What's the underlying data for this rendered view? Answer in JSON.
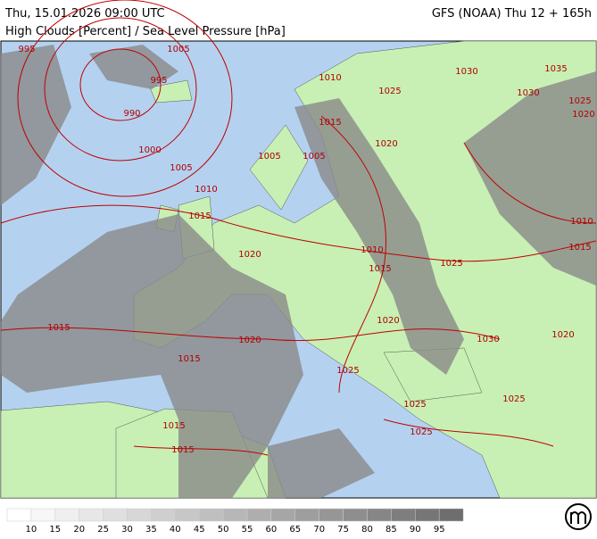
{
  "header": {
    "left": "Thu, 15.01.2026 09:00 UTC",
    "right": "GFS (NOAA) Thu 12 + 165h",
    "subtitle": "High Clouds [Percent] / Sea Level Pressure [hPa]"
  },
  "isobar_labels": [
    995,
    1005,
    995,
    990,
    1000,
    1005,
    1010,
    1030,
    1035,
    1025,
    1030,
    1025,
    1020,
    1015,
    1020,
    1005,
    1005,
    1010,
    1015,
    1010,
    1015,
    1020,
    1010,
    1015,
    1025,
    1020,
    1015,
    1020,
    1030,
    1020,
    1015,
    1025,
    1025,
    1025,
    1015,
    1025,
    1015
  ],
  "legend": {
    "ticks": [
      10,
      15,
      20,
      25,
      30,
      35,
      40,
      45,
      50,
      55,
      60,
      65,
      70,
      75,
      80,
      85,
      90,
      95
    ]
  }
}
